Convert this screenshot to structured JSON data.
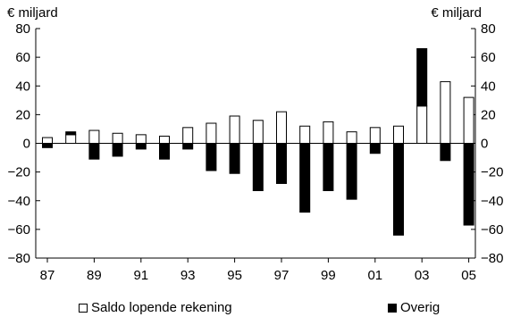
{
  "chart_data": {
    "type": "bar",
    "unit_left": "€ miljard",
    "unit_right": "€ miljard",
    "ylim": [
      -80,
      80
    ],
    "y_ticks": [
      80,
      60,
      40,
      20,
      0,
      -20,
      -40,
      -60,
      -80
    ],
    "categories": [
      "87",
      "88",
      "89",
      "90",
      "91",
      "92",
      "93",
      "94",
      "95",
      "96",
      "97",
      "98",
      "99",
      "00",
      "01",
      "02",
      "03",
      "04",
      "05"
    ],
    "x_tick_labels": [
      "87",
      "89",
      "91",
      "93",
      "95",
      "97",
      "99",
      "01",
      "03",
      "05"
    ],
    "series": [
      {
        "name": "Saldo lopende rekening",
        "color": "#ffffff",
        "values": [
          4,
          6,
          9,
          7,
          6,
          5,
          11,
          14,
          19,
          16,
          22,
          12,
          15,
          8,
          11,
          12,
          26,
          43,
          32
        ]
      },
      {
        "name": "Overig",
        "color": "#000000",
        "values": [
          -3,
          2,
          -11,
          -9,
          -4,
          -11,
          -4,
          -19,
          -21,
          -33,
          -28,
          -48,
          -33,
          -39,
          -7,
          -64,
          40,
          -12,
          -57
        ]
      }
    ],
    "grid": false,
    "legend_position": "bottom"
  }
}
